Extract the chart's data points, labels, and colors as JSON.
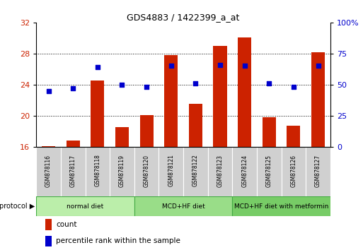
{
  "title": "GDS4883 / 1422399_a_at",
  "samples": [
    "GSM878116",
    "GSM878117",
    "GSM878118",
    "GSM878119",
    "GSM878120",
    "GSM878121",
    "GSM878122",
    "GSM878123",
    "GSM878124",
    "GSM878125",
    "GSM878126",
    "GSM878127"
  ],
  "count_values": [
    16.1,
    16.8,
    24.5,
    18.5,
    20.1,
    27.8,
    21.5,
    29.0,
    30.1,
    19.8,
    18.7,
    28.2
  ],
  "percentile_values": [
    45,
    47,
    64,
    50,
    48,
    65,
    51,
    66,
    65,
    51,
    48,
    65
  ],
  "ylim_left": [
    16,
    32
  ],
  "ylim_right": [
    0,
    100
  ],
  "yticks_left": [
    16,
    20,
    24,
    28,
    32
  ],
  "yticks_right": [
    0,
    25,
    50,
    75,
    100
  ],
  "bar_color": "#cc2200",
  "dot_color": "#0000cc",
  "bg_color": "#ffffff",
  "sample_label_bg": "#d0d0d0",
  "protocol_groups": [
    {
      "label": "normal diet",
      "start": 0,
      "end": 4,
      "color": "#bbeeaa"
    },
    {
      "label": "MCD+HF diet",
      "start": 4,
      "end": 8,
      "color": "#99dd88"
    },
    {
      "label": "MCD+HF diet with metformin",
      "start": 8,
      "end": 12,
      "color": "#77cc66"
    }
  ],
  "legend_count_label": "count",
  "legend_percentile_label": "percentile rank within the sample",
  "protocol_label": "protocol ▶",
  "tick_label_color_left": "#cc2200",
  "tick_label_color_right": "#0000cc"
}
